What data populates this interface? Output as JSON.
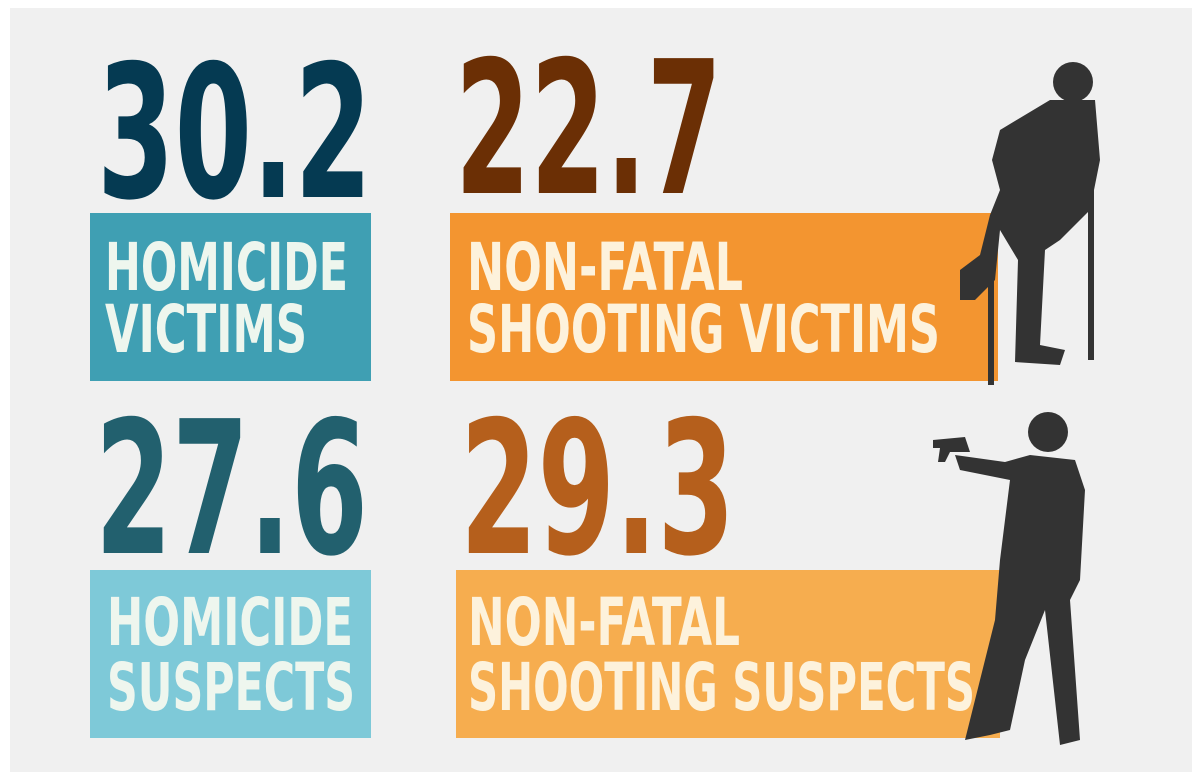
{
  "stats": [
    {
      "value": 30.2,
      "label_lines": [
        "HOMICIDE",
        "VICTIMS"
      ]
    },
    {
      "value": 22.7,
      "label_lines": [
        "NON-FATAL",
        "SHOOTING VICTIMS"
      ]
    },
    {
      "value": 27.6,
      "label_lines": [
        "HOMICIDE",
        "SUSPECTS"
      ]
    },
    {
      "value": 29.3,
      "label_lines": [
        "NON-FATAL",
        "SHOOTING SUSPECTS"
      ]
    }
  ]
}
